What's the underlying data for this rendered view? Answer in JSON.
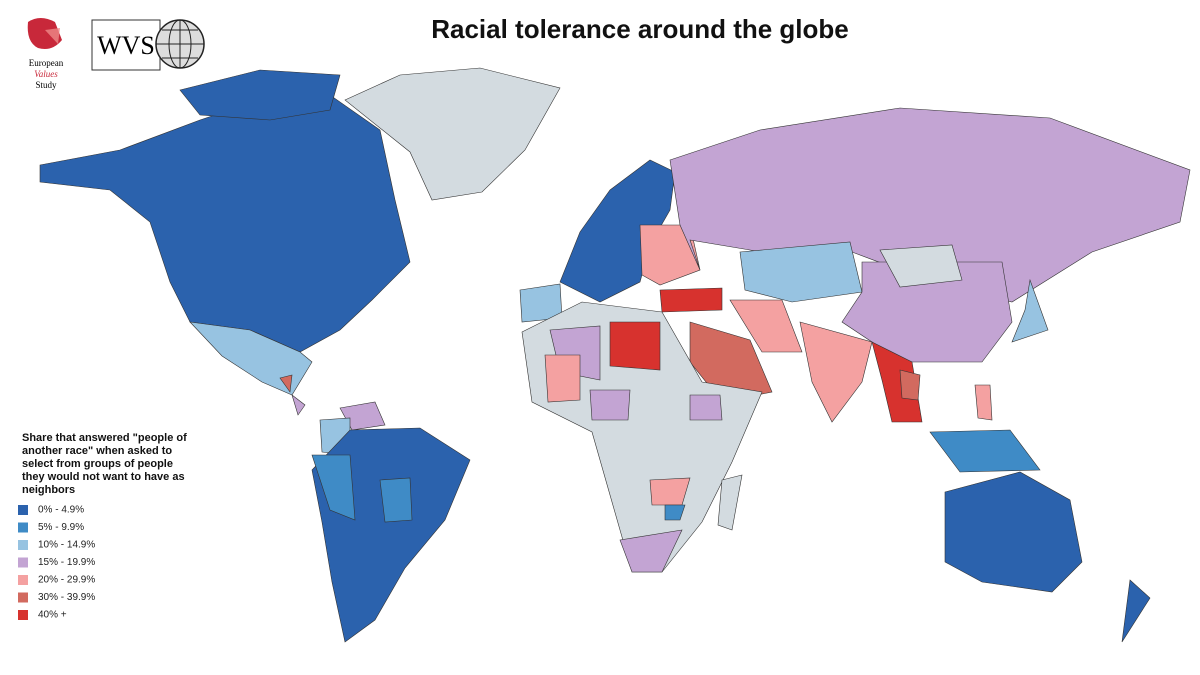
{
  "title": "Racial tolerance around the globe",
  "logos": {
    "evs": [
      "European",
      "Values",
      "Study"
    ],
    "wvs": "WVS"
  },
  "legend": {
    "title": "Share that answered \"people of another race\" when asked to select from groups of people they would not want to have as neighbors",
    "items": [
      {
        "label": "0% - 4.9%",
        "color": "#2b62ad"
      },
      {
        "label": "5% - 9.9%",
        "color": "#3f8bc6"
      },
      {
        "label": "10% - 14.9%",
        "color": "#97c3e1"
      },
      {
        "label": "15% - 19.9%",
        "color": "#c3a4d3"
      },
      {
        "label": "20% - 29.9%",
        "color": "#f4a1a1"
      },
      {
        "label": "30% - 39.9%",
        "color": "#d26a5f"
      },
      {
        "label": "40% +",
        "color": "#d7322e"
      }
    ]
  }
}
